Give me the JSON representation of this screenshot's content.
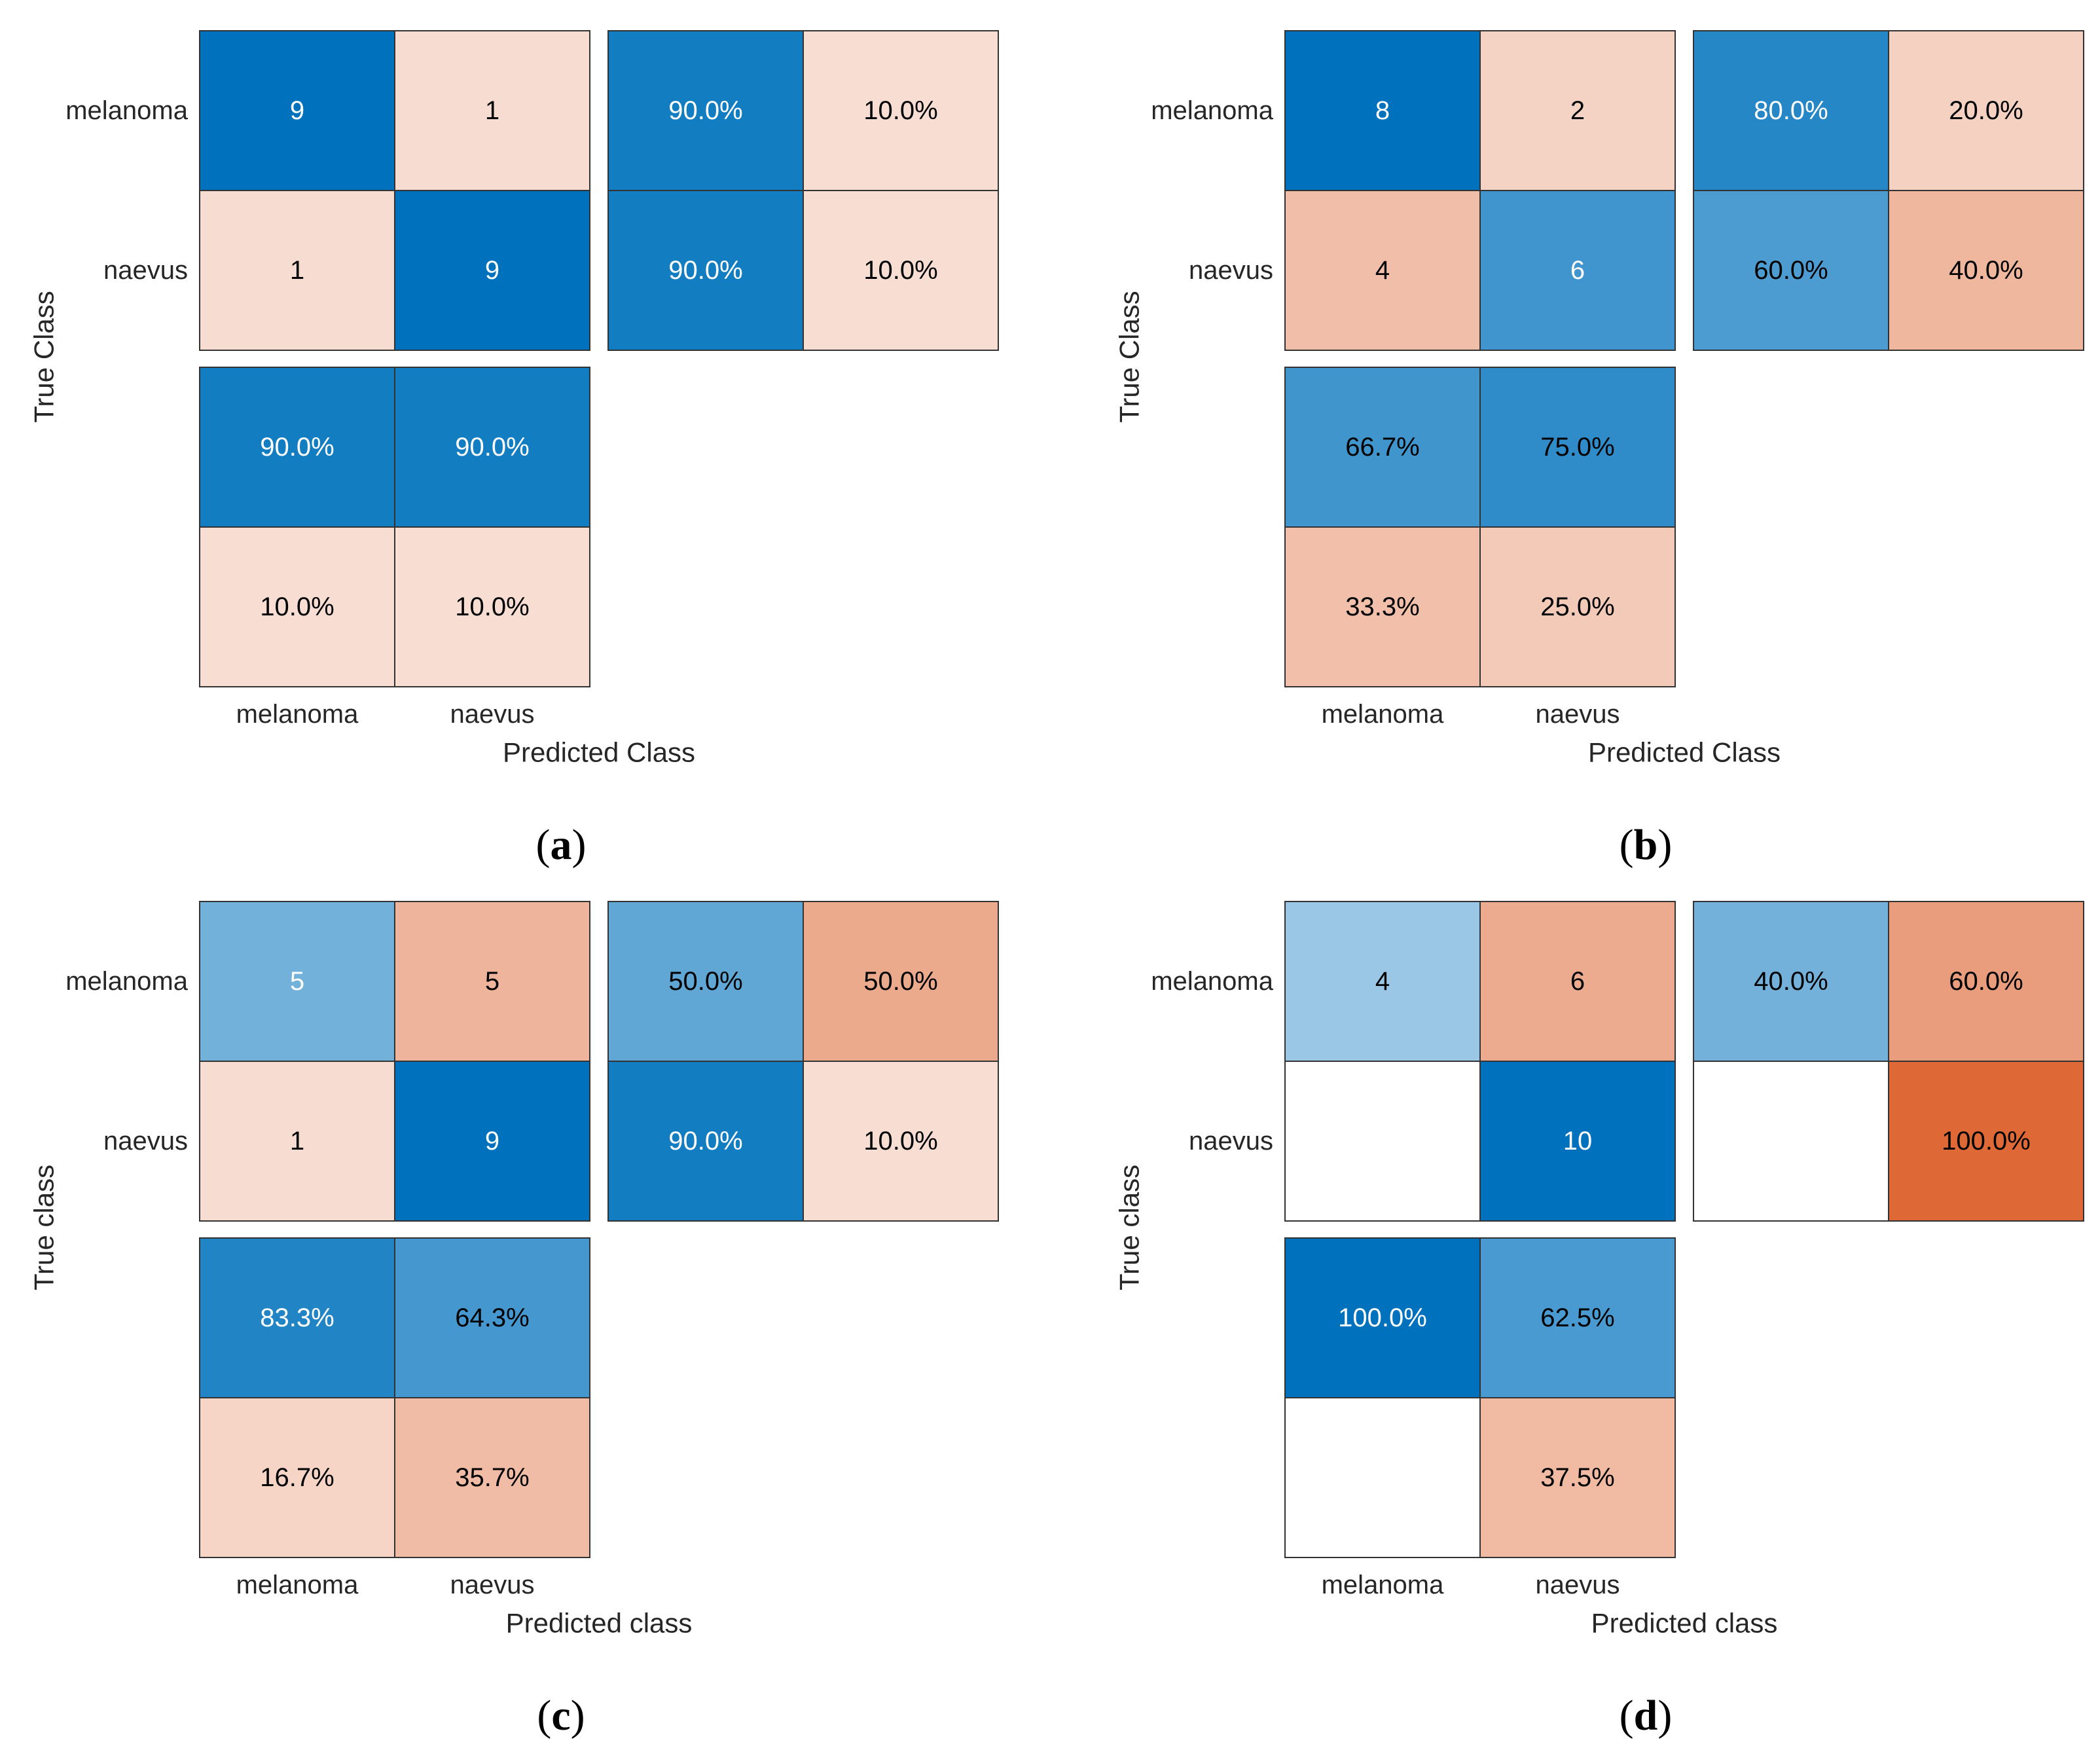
{
  "chart_data": [
    {
      "type": "heatmap",
      "caption": "a",
      "classes": [
        "melanoma",
        "naevus"
      ],
      "xlabel": "Predicted Class",
      "ylabel": "True Class",
      "counts": [
        [
          9,
          1
        ],
        [
          1,
          9
        ]
      ],
      "row_summary": [
        [
          "90.0%",
          "10.0%"
        ],
        [
          "90.0%",
          "10.0%"
        ]
      ],
      "column_summary": [
        [
          "90.0%",
          "90.0%"
        ],
        [
          "10.0%",
          "10.0%"
        ]
      ]
    },
    {
      "type": "heatmap",
      "caption": "b",
      "classes": [
        "melanoma",
        "naevus"
      ],
      "xlabel": "Predicted Class",
      "ylabel": "True Class",
      "counts": [
        [
          8,
          2
        ],
        [
          4,
          6
        ]
      ],
      "row_summary": [
        [
          "80.0%",
          "20.0%"
        ],
        [
          "60.0%",
          "40.0%"
        ]
      ],
      "column_summary": [
        [
          "66.7%",
          "75.0%"
        ],
        [
          "33.3%",
          "25.0%"
        ]
      ]
    },
    {
      "type": "heatmap",
      "caption": "c",
      "classes": [
        "melanoma",
        "naevus"
      ],
      "xlabel": "Predicted class",
      "ylabel": "True class",
      "counts": [
        [
          5,
          5
        ],
        [
          1,
          9
        ]
      ],
      "row_summary": [
        [
          "50.0%",
          "50.0%"
        ],
        [
          "90.0%",
          "10.0%"
        ]
      ],
      "column_summary": [
        [
          "83.3%",
          "64.3%"
        ],
        [
          "16.7%",
          "35.7%"
        ]
      ]
    },
    {
      "type": "heatmap",
      "caption": "d",
      "classes": [
        "melanoma",
        "naevus"
      ],
      "xlabel": "Predicted class",
      "ylabel": "True class",
      "counts": [
        [
          4,
          6
        ],
        [
          0,
          10
        ]
      ],
      "row_summary": [
        [
          "40.0%",
          "60.0%"
        ],
        [
          "",
          "100.0%"
        ]
      ],
      "column_summary": [
        [
          "100.0%",
          "62.5%"
        ],
        [
          "",
          "37.5%"
        ]
      ]
    }
  ],
  "colors": {
    "correct": "#0072bd",
    "incorrect": "#d95319",
    "empty": "#ffffff",
    "dark_text": "#000000",
    "light_text": "#ffffff"
  }
}
